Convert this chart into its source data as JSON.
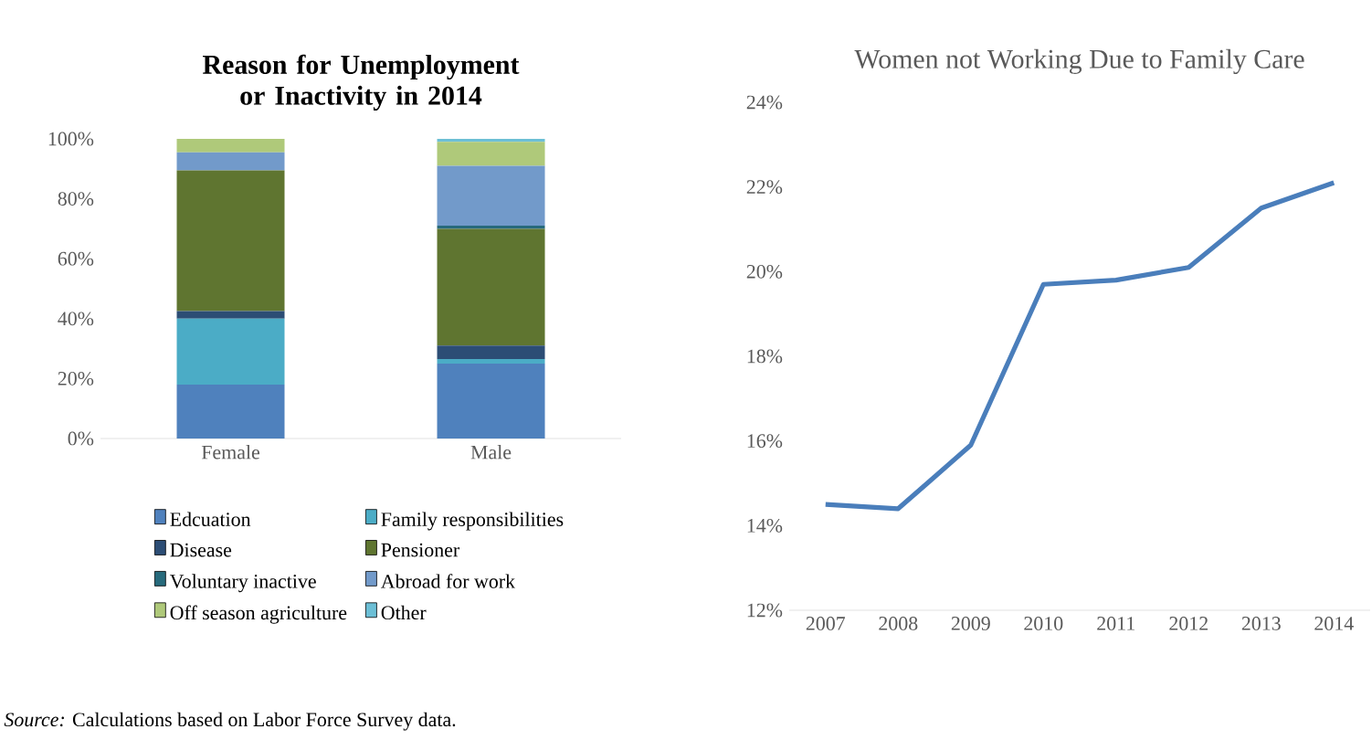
{
  "chart_data": [
    {
      "type": "bar",
      "stacked": true,
      "title": "Reason for Unemployment or Inactivity in 2014",
      "categories": [
        "Female",
        "Male"
      ],
      "series": [
        {
          "name": "Edcuation",
          "color": "#4f81bd",
          "values": [
            18,
            25
          ]
        },
        {
          "name": "Family responsibilities",
          "color": "#4bacc6",
          "values": [
            22,
            1.5
          ]
        },
        {
          "name": "Disease",
          "color": "#2c4d75",
          "values": [
            2.5,
            4.5
          ]
        },
        {
          "name": "Pensioner",
          "color": "#5f7530",
          "values": [
            47,
            39
          ]
        },
        {
          "name": "Voluntary inactive",
          "color": "#276a7c",
          "values": [
            0,
            1
          ]
        },
        {
          "name": "Abroad for work",
          "color": "#729aca",
          "values": [
            6,
            20
          ]
        },
        {
          "name": "Off season agriculture",
          "color": "#afc97a",
          "values": [
            4.5,
            8
          ]
        },
        {
          "name": "Other",
          "color": "#6cbfd6",
          "values": [
            0,
            1
          ]
        }
      ],
      "ylim": [
        0,
        100
      ],
      "yticks": [
        {
          "value": 0,
          "label": "0%"
        },
        {
          "value": 20,
          "label": "20%"
        },
        {
          "value": 40,
          "label": "40%"
        },
        {
          "value": 60,
          "label": "60%"
        },
        {
          "value": 80,
          "label": "80%"
        },
        {
          "value": 100,
          "label": "100%"
        }
      ],
      "legend": "bottom",
      "annotations": [
        "*Source:* Calculations based on Labor Force Survey data."
      ]
    },
    {
      "type": "line",
      "title": "Women not Working Due to Family Care",
      "categories": [
        "2007",
        "2008",
        "2009",
        "2010",
        "2011",
        "2012",
        "2013",
        "2014"
      ],
      "series": [
        {
          "color": "#4a7ebb",
          "values": [
            14.5,
            14.4,
            15.9,
            19.7,
            19.8,
            20.1,
            21.5,
            22.1
          ]
        }
      ],
      "ylim": [
        12,
        24
      ],
      "yticks": [
        {
          "value": 12,
          "label": "12%"
        },
        {
          "value": 14,
          "label": "14%"
        },
        {
          "value": 16,
          "label": "16%"
        },
        {
          "value": 18,
          "label": "18%"
        },
        {
          "value": 20,
          "label": "20%"
        },
        {
          "value": 22,
          "label": "22%"
        },
        {
          "value": 24,
          "label": "24%"
        }
      ],
      "line_style": "solid"
    }
  ]
}
